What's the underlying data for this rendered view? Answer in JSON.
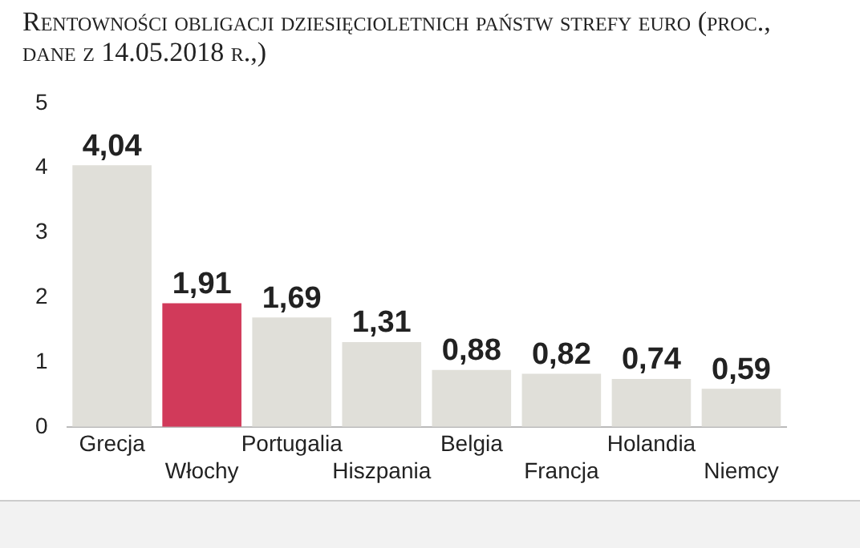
{
  "chart_data": {
    "type": "bar",
    "title": "Rentowności obligacji dziesięcioletnich państw strefy euro (proc., dane z 14.05.2018 r.,)",
    "categories": [
      "Grecja",
      "Włochy",
      "Portugalia",
      "Hiszpania",
      "Belgia",
      "Francja",
      "Holandia",
      "Niemcy"
    ],
    "values": [
      4.04,
      1.91,
      1.69,
      1.31,
      0.88,
      0.82,
      0.74,
      0.59
    ],
    "colors": [
      "#e0dfd9",
      "#d13a5a",
      "#e0dfd9",
      "#e0dfd9",
      "#e0dfd9",
      "#e0dfd9",
      "#e0dfd9",
      "#e0dfd9"
    ],
    "value_labels": [
      "4,04",
      "1,91",
      "1,69",
      "1,31",
      "0,88",
      "0,82",
      "0,74",
      "0,59"
    ],
    "ylim": [
      0,
      5
    ],
    "yticks": [
      0,
      1,
      2,
      3,
      4,
      5
    ],
    "grid": false,
    "legend": false
  }
}
